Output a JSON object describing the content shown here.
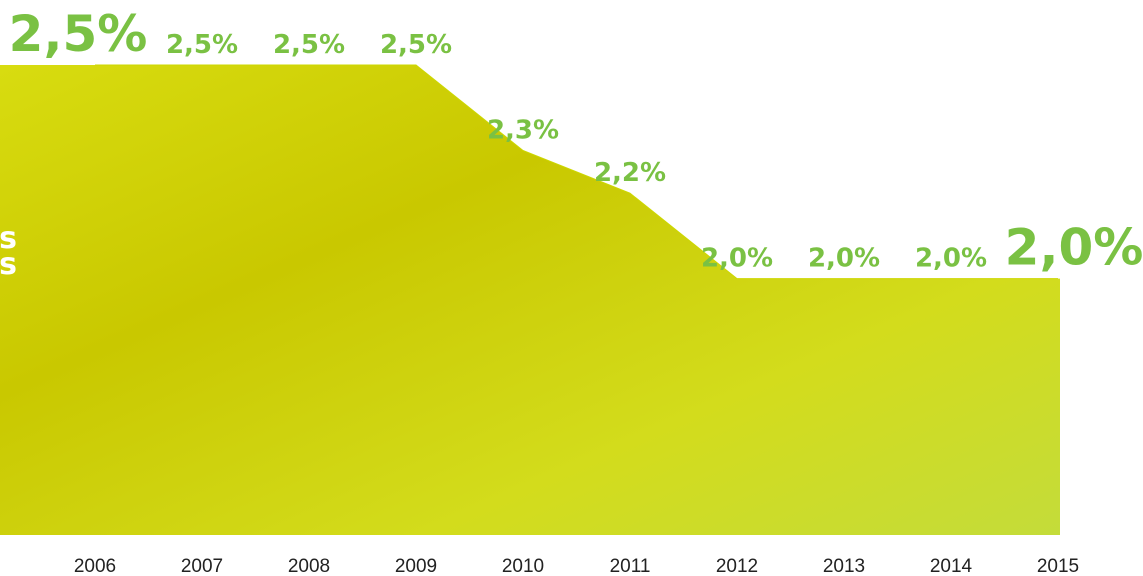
{
  "chart_data": {
    "type": "area",
    "categories": [
      "2006",
      "2007",
      "2008",
      "2009",
      "2010",
      "2011",
      "2012",
      "2013",
      "2014",
      "2015"
    ],
    "values": [
      2.5,
      2.5,
      2.5,
      2.5,
      2.3,
      2.2,
      2.0,
      2.0,
      2.0,
      2.0
    ],
    "value_labels": [
      "2,5%",
      "2,5%",
      "2,5%",
      "2,5%",
      "2,3%",
      "2,2%",
      "2,0%",
      "2,0%",
      "2,0%",
      "2,0%"
    ],
    "ylim": [
      1.4,
      2.5
    ],
    "color": "#cdd800",
    "label_color": "#7ac143",
    "annotations": [
      "s",
      "s"
    ]
  }
}
